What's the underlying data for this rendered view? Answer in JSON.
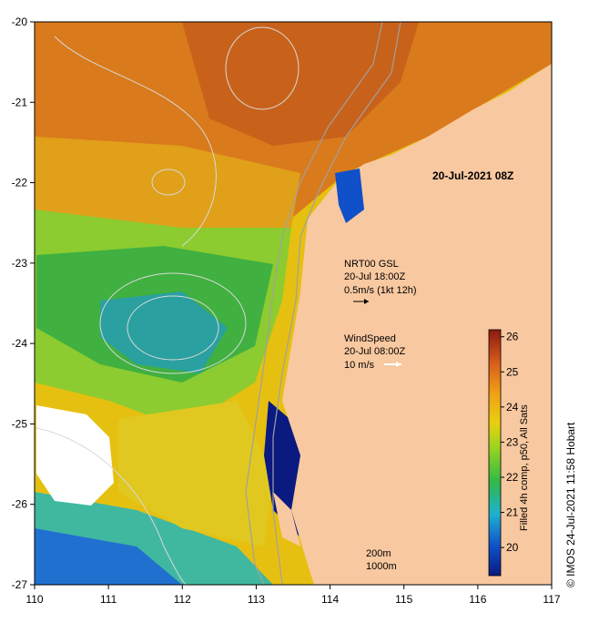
{
  "map": {
    "date_label": "20-Jul-2021 08Z",
    "lon_ticks": [
      "110",
      "111",
      "112",
      "113",
      "114",
      "115",
      "116",
      "117"
    ],
    "lat_ticks": [
      "-20",
      "-21",
      "-22",
      "-23",
      "-24",
      "-25",
      "-26",
      "-27"
    ],
    "lon_range": [
      110,
      117
    ],
    "lat_range": [
      -27,
      -20
    ],
    "current_legend": {
      "line1": "NRT00 GSL",
      "line2": "20-Jul 18:00Z",
      "line3": "0.5m/s (1kt 12h)"
    },
    "wind_legend": {
      "line1": "WindSpeed",
      "line2": "20-Jul 08:00Z",
      "line3": "10 m/s"
    },
    "isobath_labels": [
      "200m",
      "1000m"
    ],
    "credit": "© IMOS 24-Jul-2021 11:58 Hobart",
    "colors": {
      "land": "#f8c8a0",
      "warm": "#d0701a",
      "mid": "#e6c010",
      "cool": "#3cba3c",
      "cold": "#1050c8",
      "coldest": "#0a1a80",
      "contour": "#d8d8d8",
      "isobath": "#a0a0a0",
      "wind_arrow": "#ffffff",
      "current_arrow": "#000000"
    }
  },
  "colorbar": {
    "title": "Filled 4h comp, p50, All Sats",
    "ticks": [
      "26",
      "25",
      "24",
      "23",
      "22",
      "21",
      "20"
    ],
    "range": [
      19.2,
      26.2
    ]
  }
}
